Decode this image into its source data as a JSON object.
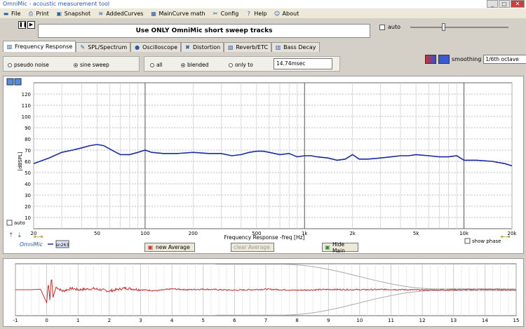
{
  "window": {
    "title": "OmniMic - acoustic measurement tool",
    "minimize": "_",
    "maximize": "□",
    "close": "✕"
  },
  "menu": [
    {
      "label": "File",
      "icon": "folder-icon",
      "glyph": "▬"
    },
    {
      "label": "Print",
      "icon": "printer-icon",
      "glyph": "⎙"
    },
    {
      "label": "Snapshot",
      "icon": "camera-icon",
      "glyph": "▣"
    },
    {
      "label": "AddedCurves",
      "icon": "curves-icon",
      "glyph": "≋"
    },
    {
      "label": "MainCurve math",
      "icon": "calculator-icon",
      "glyph": "▦"
    },
    {
      "label": "Config",
      "icon": "tools-icon",
      "glyph": "✂"
    },
    {
      "label": "Help",
      "icon": "help-icon",
      "glyph": "?"
    },
    {
      "label": "About",
      "icon": "about-icon",
      "glyph": "☺"
    }
  ],
  "banner": "Use ONLY OmniMic short sweep tracks",
  "top_auto_label": "auto",
  "tabs": [
    {
      "label": "Frequency Response",
      "icon": "frequency-response-icon",
      "glyph": "▨",
      "active": true
    },
    {
      "label": "SPL/Spectrum",
      "icon": "spl-icon",
      "glyph": "✎"
    },
    {
      "label": "Oscilloscope",
      "icon": "oscilloscope-icon",
      "glyph": "●"
    },
    {
      "label": "Distortion",
      "icon": "distortion-icon",
      "glyph": "✖"
    },
    {
      "label": "Reverb/ETC",
      "icon": "reverb-icon",
      "glyph": "▧"
    },
    {
      "label": "Bass Decay",
      "icon": "bass-decay-icon",
      "glyph": "▥"
    }
  ],
  "source": {
    "pseudo_noise": "pseudo noise",
    "sine_sweep": "sine sweep"
  },
  "averaging": {
    "all": "all",
    "blended": "blended",
    "only_to": "only to",
    "msec_value": "14.74msec"
  },
  "smoothing": {
    "label": "smoothing",
    "value": "1/6th octave"
  },
  "main_plot": {
    "auto_label": "auto",
    "device_label": "OmniMic",
    "device_badge": "sn263",
    "show_phase": "show phase"
  },
  "buttons": {
    "new_average": "new Average",
    "clear_average": "clear Average",
    "hide_main": "Hide Main"
  },
  "chart_data": [
    {
      "type": "line",
      "xlabel": "Frequency Response -freq [Hz]",
      "ylabel": "[dBSPL]",
      "xscale": "log",
      "xlim": [
        20,
        20000
      ],
      "ylim": [
        0,
        130
      ],
      "yticks": [
        10,
        20,
        30,
        40,
        50,
        60,
        70,
        80,
        90,
        100,
        110,
        120
      ],
      "xticks": [
        {
          "v": 20,
          "t": "20"
        },
        {
          "v": 50,
          "t": "50"
        },
        {
          "v": 100,
          "t": "100"
        },
        {
          "v": 200,
          "t": "200"
        },
        {
          "v": 500,
          "t": "500"
        },
        {
          "v": 1000,
          "t": "1k"
        },
        {
          "v": 2000,
          "t": "2k"
        },
        {
          "v": 5000,
          "t": "5k"
        },
        {
          "v": 10000,
          "t": "10k"
        },
        {
          "v": 20000,
          "t": "20k"
        }
      ],
      "color": "#1a2aa0",
      "x": [
        20,
        25,
        30,
        35,
        40,
        45,
        50,
        55,
        60,
        70,
        80,
        90,
        100,
        110,
        130,
        160,
        200,
        250,
        300,
        350,
        400,
        450,
        500,
        550,
        600,
        700,
        800,
        900,
        1000,
        1100,
        1200,
        1400,
        1600,
        1800,
        2000,
        2200,
        2500,
        3000,
        3500,
        4000,
        4500,
        5000,
        6000,
        7000,
        8000,
        9000,
        10000,
        12000,
        15000,
        18000,
        20000
      ],
      "y": [
        58,
        63,
        68,
        70,
        72,
        74,
        75,
        74,
        71,
        66,
        66,
        68,
        70,
        68,
        67,
        67,
        68,
        67,
        67,
        65,
        66,
        68,
        69,
        69,
        68,
        66,
        67,
        64,
        65,
        65,
        64,
        63,
        61,
        62,
        66,
        62,
        62,
        63,
        64,
        65,
        65,
        66,
        65,
        64,
        64,
        65,
        61,
        61,
        60,
        58,
        56
      ],
      "grid": true
    },
    {
      "type": "line",
      "xlim": [
        -1,
        15
      ],
      "ylim": [
        -1,
        1
      ],
      "xticks": [
        -1,
        0,
        1,
        2,
        3,
        4,
        5,
        6,
        7,
        8,
        9,
        10,
        11,
        12,
        13,
        14,
        15
      ],
      "color": "#c03030",
      "x": [
        -1,
        -0.5,
        -0.2,
        0,
        0.05,
        0.1,
        0.15,
        0.2,
        0.3,
        0.5,
        0.8,
        1,
        1.5,
        2,
        2.5,
        3,
        3.5,
        4,
        4.5,
        5,
        6,
        7,
        8,
        9,
        10,
        11,
        12,
        13,
        14,
        15
      ],
      "y": [
        0,
        0,
        0.02,
        -0.5,
        0.3,
        -0.4,
        0.55,
        -0.3,
        0.1,
        -0.05,
        0.05,
        0,
        0.04,
        -0.05,
        0.06,
        0,
        -0.04,
        0.03,
        0,
        0.02,
        -0.02,
        0.02,
        -0.02,
        0.01,
        0,
        0.01,
        -0.01,
        0,
        0.01,
        0
      ],
      "envelope": true,
      "grid": true
    }
  ]
}
